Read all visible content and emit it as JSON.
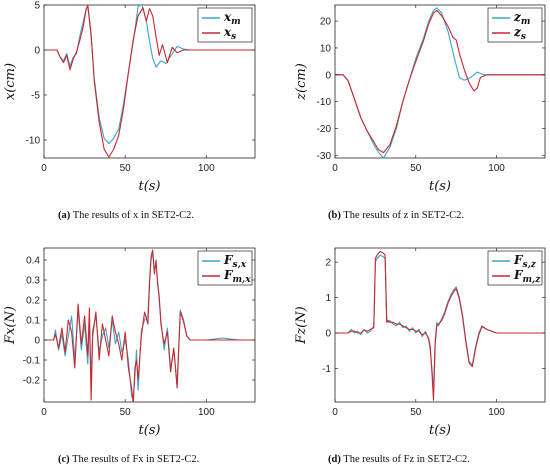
{
  "colors": {
    "blue": "#3aa6c9",
    "red": "#c8282e"
  },
  "chart_data": [
    {
      "type": "line",
      "id": "a",
      "tag": "(a)",
      "caption_text": "The results of x in SET2-C2.",
      "xlabel": "t(s)",
      "ylabel": "x(cm)",
      "xlim": [
        0,
        130
      ],
      "ylim": [
        -12,
        5
      ],
      "xticks": [
        0,
        50,
        100
      ],
      "yticks": [
        -10,
        -5,
        0,
        5
      ],
      "legend": "top-right",
      "series": [
        {
          "name": "x_m",
          "color": "#3aa6c9",
          "x": [
            0,
            8,
            10,
            12,
            14,
            16,
            18,
            20,
            22,
            24,
            26,
            27,
            29,
            31,
            34,
            37,
            40,
            43,
            46,
            49,
            52,
            55,
            58,
            60,
            61,
            63,
            65,
            67,
            69,
            72,
            75,
            78,
            82,
            86,
            90,
            100,
            130
          ],
          "y": [
            0,
            0,
            -0.8,
            -1.2,
            -0.4,
            -1.8,
            -0.8,
            -0.4,
            1.5,
            3.0,
            4.6,
            4.9,
            1.5,
            -3.2,
            -7.5,
            -9.8,
            -10.4,
            -9.8,
            -8.8,
            -6.0,
            -2.5,
            1.0,
            4.8,
            5.1,
            4.6,
            3.2,
            1.0,
            -0.9,
            -1.9,
            -1.2,
            -1.5,
            -0.7,
            0.4,
            0.1,
            0,
            0,
            0
          ]
        },
        {
          "name": "x_s",
          "color": "#c8282e",
          "x": [
            0,
            8,
            10,
            12,
            14,
            16,
            18,
            20,
            22,
            24,
            26,
            27,
            29,
            31,
            34,
            37,
            40,
            43,
            46,
            49,
            52,
            55,
            58,
            61,
            63,
            65,
            67,
            69,
            71,
            73,
            76,
            79,
            82,
            86,
            90,
            100,
            130
          ],
          "y": [
            0,
            0,
            -0.8,
            -1.4,
            -0.6,
            -2.2,
            -1.0,
            -0.2,
            1.0,
            2.5,
            4.5,
            5.0,
            1.8,
            -3.5,
            -8.0,
            -11.0,
            -11.9,
            -11.0,
            -9.5,
            -6.5,
            -2.5,
            1.2,
            3.8,
            4.7,
            3.2,
            4.6,
            3.8,
            1.5,
            -0.6,
            0.6,
            -1.4,
            0.3,
            -0.3,
            0,
            0,
            0,
            0
          ]
        }
      ]
    },
    {
      "type": "line",
      "id": "b",
      "tag": "(b)",
      "caption_text": "The results of z in SET2-C2.",
      "xlabel": "t(s)",
      "ylabel": "z(cm)",
      "xlim": [
        0,
        130
      ],
      "ylim": [
        -31,
        26
      ],
      "xticks": [
        0,
        50,
        100
      ],
      "yticks": [
        -30,
        -20,
        -10,
        0,
        10,
        20
      ],
      "legend": "top-right",
      "series": [
        {
          "name": "z_m",
          "color": "#3aa6c9",
          "x": [
            0,
            5,
            8,
            12,
            16,
            20,
            24,
            27,
            30,
            34,
            38,
            42,
            46,
            50,
            55,
            58,
            61,
            63,
            66,
            70,
            74,
            77,
            80,
            84,
            88,
            92,
            96,
            130
          ],
          "y": [
            0,
            0,
            -2,
            -9,
            -16,
            -21,
            -26,
            -29,
            -31,
            -27,
            -20,
            -10,
            -2,
            6,
            14,
            20,
            24,
            25,
            23,
            16,
            6,
            -1,
            -2,
            -1,
            1,
            0,
            0,
            0
          ]
        },
        {
          "name": "z_s",
          "color": "#c8282e",
          "x": [
            0,
            5,
            8,
            12,
            16,
            20,
            24,
            27,
            30,
            34,
            38,
            42,
            46,
            50,
            55,
            58,
            61,
            63,
            66,
            70,
            73,
            75,
            77,
            80,
            83,
            86,
            88,
            90,
            94,
            100,
            130
          ],
          "y": [
            0,
            0,
            -2,
            -9,
            -16,
            -21,
            -25,
            -28,
            -29,
            -26,
            -19,
            -10,
            -2,
            5,
            13,
            19,
            23,
            24,
            22,
            18,
            14,
            13,
            8,
            2,
            -3,
            -6,
            -5,
            -1,
            0,
            0,
            0
          ]
        }
      ]
    },
    {
      "type": "line",
      "id": "c",
      "tag": "(c)",
      "caption_text": "The results of Fx in SET2-C2.",
      "xlabel": "t(s)",
      "ylabel": "Fx(N)",
      "xlim": [
        0,
        130
      ],
      "ylim": [
        -0.31,
        0.46
      ],
      "xticks": [
        0,
        50,
        100
      ],
      "yticks": [
        -0.2,
        -0.1,
        0,
        0.1,
        0.2,
        0.3,
        0.4
      ],
      "legend": "top-right",
      "series": [
        {
          "name": "F_s,x",
          "color": "#3aa6c9",
          "x": [
            0,
            6,
            7,
            9,
            11,
            13,
            15,
            17,
            19,
            21,
            23,
            25,
            27,
            28,
            29,
            30,
            32,
            34,
            36,
            38,
            40,
            42,
            44,
            46,
            48,
            50,
            52,
            54,
            55,
            56,
            57,
            58,
            60,
            62,
            64,
            65,
            66,
            67,
            68,
            69,
            70,
            71,
            72,
            74,
            76,
            78,
            80,
            82,
            84,
            86,
            88,
            90,
            92,
            94,
            100,
            110,
            120,
            130
          ],
          "y": [
            0,
            0,
            0.05,
            -0.05,
            0.03,
            -0.08,
            0.02,
            0.12,
            -0.1,
            0.15,
            -0.05,
            0.08,
            -0.12,
            0.1,
            -0.2,
            0.05,
            0.12,
            -0.06,
            0.02,
            0.06,
            -0.04,
            0.1,
            -0.02,
            0.04,
            -0.06,
            0.0,
            -0.1,
            -0.28,
            -0.3,
            -0.18,
            -0.05,
            -0.25,
            0.05,
            0.1,
            0.12,
            0.3,
            0.4,
            0.44,
            0.35,
            0.38,
            0.3,
            0.2,
            0.1,
            -0.05,
            0.06,
            -0.14,
            -0.05,
            -0.22,
            0.15,
            0.1,
            0.02,
            0.0,
            0.0,
            0.0,
            0.0,
            0.01,
            0.0,
            0.0
          ]
        },
        {
          "name": "F_m,x",
          "color": "#c8282e",
          "x": [
            0,
            6,
            7,
            9,
            11,
            13,
            15,
            17,
            19,
            21,
            23,
            25,
            27,
            28,
            29,
            30,
            32,
            34,
            36,
            38,
            40,
            42,
            44,
            46,
            48,
            50,
            52,
            54,
            55,
            56,
            57,
            58,
            60,
            62,
            64,
            65,
            66,
            67,
            68,
            69,
            70,
            71,
            72,
            74,
            76,
            78,
            80,
            82,
            84,
            86,
            88,
            90,
            92,
            94,
            100,
            110,
            120,
            130
          ],
          "y": [
            0,
            0,
            0.03,
            -0.04,
            0.06,
            -0.06,
            0.1,
            0.04,
            -0.14,
            0.18,
            -0.02,
            0.12,
            -0.08,
            0.16,
            -0.3,
            0.02,
            0.14,
            -0.1,
            0.08,
            0.0,
            -0.08,
            0.12,
            0.04,
            -0.02,
            -0.1,
            0.04,
            -0.14,
            -0.24,
            -0.32,
            -0.14,
            -0.1,
            -0.2,
            0.02,
            0.14,
            0.08,
            0.28,
            0.42,
            0.45,
            0.33,
            0.4,
            0.28,
            0.22,
            0.08,
            -0.02,
            0.04,
            -0.16,
            -0.04,
            -0.24,
            0.14,
            0.09,
            0.02,
            0.0,
            0.0,
            0.0,
            0.0,
            0.0,
            0.0,
            0.0
          ]
        }
      ]
    },
    {
      "type": "line",
      "id": "d",
      "tag": "(d)",
      "caption_text": "The results of Fz in SET2-C2.",
      "xlabel": "t(s)",
      "ylabel": "Fz(N)",
      "xlim": [
        0,
        130
      ],
      "ylim": [
        -1.95,
        2.4
      ],
      "xticks": [
        0,
        50,
        100
      ],
      "yticks": [
        -1,
        0,
        1,
        2
      ],
      "legend": "top-right",
      "series": [
        {
          "name": "F_s,z",
          "color": "#3aa6c9",
          "x": [
            0,
            8,
            10,
            12,
            14,
            16,
            18,
            20,
            22,
            24,
            25,
            26,
            28,
            30,
            31,
            32,
            33,
            34,
            36,
            38,
            40,
            42,
            44,
            46,
            48,
            50,
            52,
            54,
            56,
            58,
            59,
            60,
            61,
            62,
            63,
            64,
            66,
            68,
            70,
            72,
            74,
            75,
            77,
            79,
            81,
            83,
            85,
            87,
            89,
            91,
            94,
            100,
            130
          ],
          "y": [
            0,
            0,
            0.1,
            0.0,
            0.05,
            -0.05,
            0.1,
            0.0,
            0.05,
            0.2,
            2.0,
            2.1,
            2.2,
            2.15,
            2.1,
            0.4,
            0.3,
            0.35,
            0.25,
            0.2,
            0.3,
            0.15,
            0.2,
            0.05,
            0.15,
            0.0,
            0.1,
            -0.1,
            0.05,
            -0.2,
            -0.5,
            -1.0,
            -1.6,
            -0.2,
            0.3,
            0.2,
            0.4,
            0.6,
            0.9,
            1.1,
            1.25,
            1.3,
            1.0,
            0.5,
            -0.2,
            -0.8,
            -0.9,
            -0.4,
            0.0,
            0.2,
            0.1,
            0.0,
            0.0
          ]
        },
        {
          "name": "F_m,z",
          "color": "#c8282e",
          "x": [
            0,
            8,
            10,
            12,
            14,
            16,
            18,
            20,
            22,
            24,
            25,
            26,
            28,
            30,
            31,
            32,
            33,
            34,
            36,
            38,
            40,
            42,
            44,
            46,
            48,
            50,
            52,
            54,
            56,
            58,
            59,
            60,
            61,
            62,
            63,
            64,
            66,
            68,
            70,
            72,
            74,
            75,
            77,
            79,
            81,
            83,
            85,
            87,
            89,
            91,
            94,
            100,
            130
          ],
          "y": [
            0,
            0,
            0.05,
            0.05,
            0.0,
            0.0,
            0.08,
            0.05,
            0.1,
            0.15,
            2.1,
            2.2,
            2.3,
            2.25,
            2.2,
            0.3,
            0.35,
            0.3,
            0.3,
            0.25,
            0.25,
            0.2,
            0.15,
            0.1,
            0.1,
            0.05,
            0.05,
            -0.05,
            0.0,
            -0.15,
            -0.4,
            -1.1,
            -1.9,
            -0.3,
            0.2,
            0.25,
            0.35,
            0.55,
            0.85,
            1.05,
            1.2,
            1.25,
            0.95,
            0.45,
            -0.25,
            -0.85,
            -0.95,
            -0.45,
            -0.05,
            0.18,
            0.1,
            0.0,
            0.0
          ]
        }
      ]
    }
  ]
}
